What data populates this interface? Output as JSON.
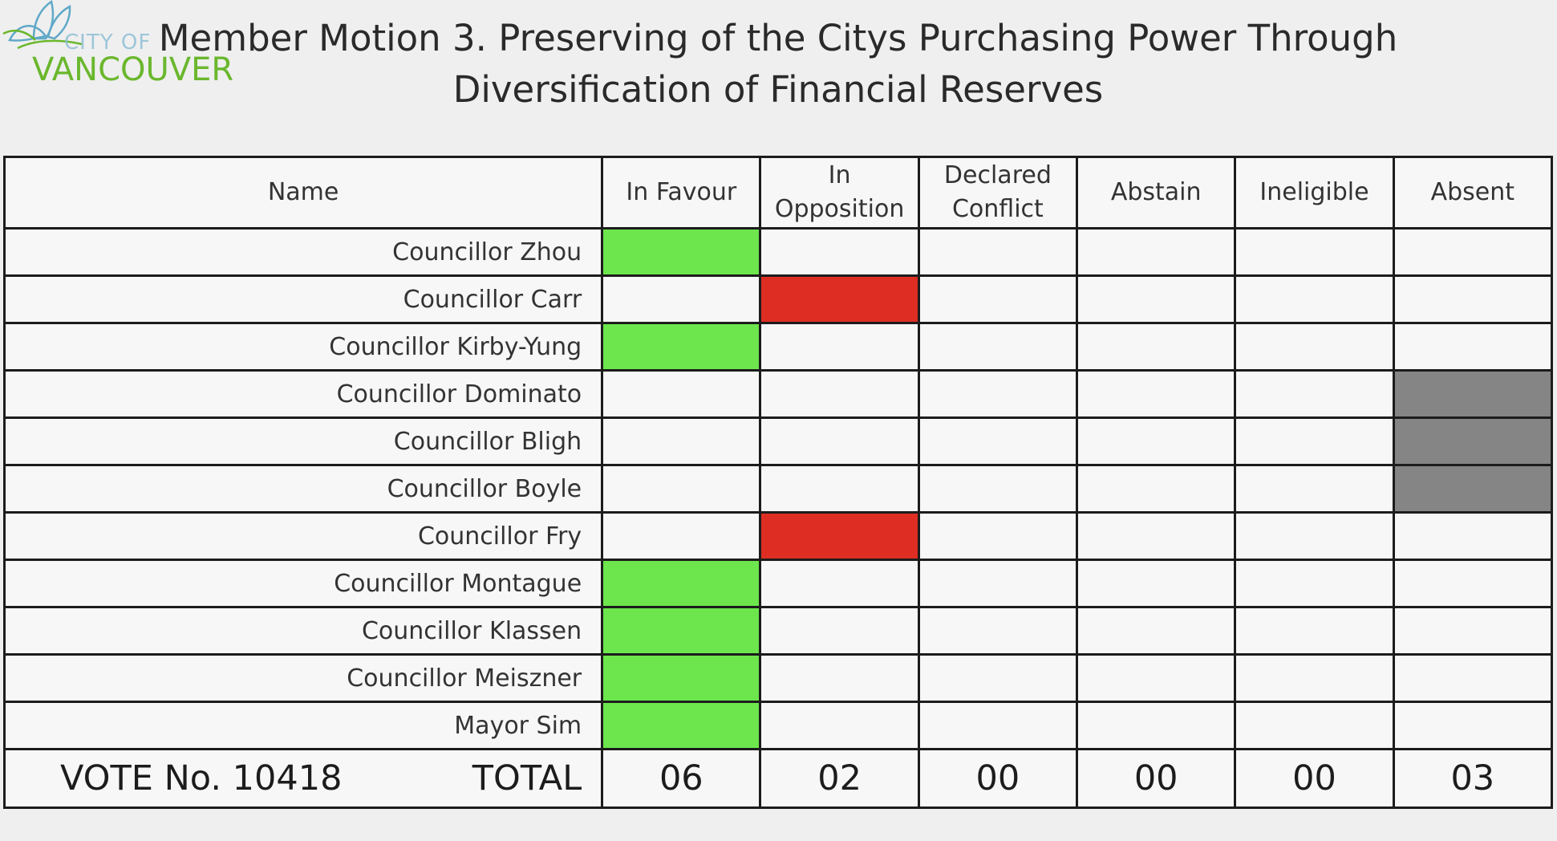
{
  "logo": {
    "city": "CITY OF",
    "name": "VANCOUVER",
    "icon": "lotus-leaves-icon"
  },
  "title": "Member Motion 3. Preserving of the Citys Purchasing Power Through Diversification of Financial Reserves",
  "table": {
    "headers": {
      "name": "Name",
      "in_favour": "In Favour",
      "in_opposition_1": "In",
      "in_opposition_2": "Opposition",
      "declared_conflict_1": "Declared",
      "declared_conflict_2": "Conflict",
      "abstain": "Abstain",
      "ineligible": "Ineligible",
      "absent": "Absent"
    },
    "columns": [
      "in_favour",
      "in_opposition",
      "declared_conflict",
      "abstain",
      "ineligible",
      "absent"
    ],
    "colors": {
      "in_favour": "#6ce64c",
      "in_opposition": "#de2e24",
      "absent": "#858585"
    },
    "rows": [
      {
        "name": "Councillor Zhou",
        "vote": "in_favour"
      },
      {
        "name": "Councillor Carr",
        "vote": "in_opposition"
      },
      {
        "name": "Councillor Kirby-Yung",
        "vote": "in_favour"
      },
      {
        "name": "Councillor Dominato",
        "vote": "absent"
      },
      {
        "name": "Councillor Bligh",
        "vote": "absent"
      },
      {
        "name": "Councillor Boyle",
        "vote": "absent"
      },
      {
        "name": "Councillor Fry",
        "vote": "in_opposition"
      },
      {
        "name": "Councillor Montague",
        "vote": "in_favour"
      },
      {
        "name": "Councillor Klassen",
        "vote": "in_favour"
      },
      {
        "name": "Councillor Meiszner",
        "vote": "in_favour"
      },
      {
        "name": "Mayor Sim",
        "vote": "in_favour"
      }
    ],
    "totals": {
      "vote_no": "VOTE No. 10418",
      "label": "TOTAL",
      "in_favour": "06",
      "in_opposition": "02",
      "declared_conflict": "00",
      "abstain": "00",
      "ineligible": "00",
      "absent": "03"
    }
  }
}
